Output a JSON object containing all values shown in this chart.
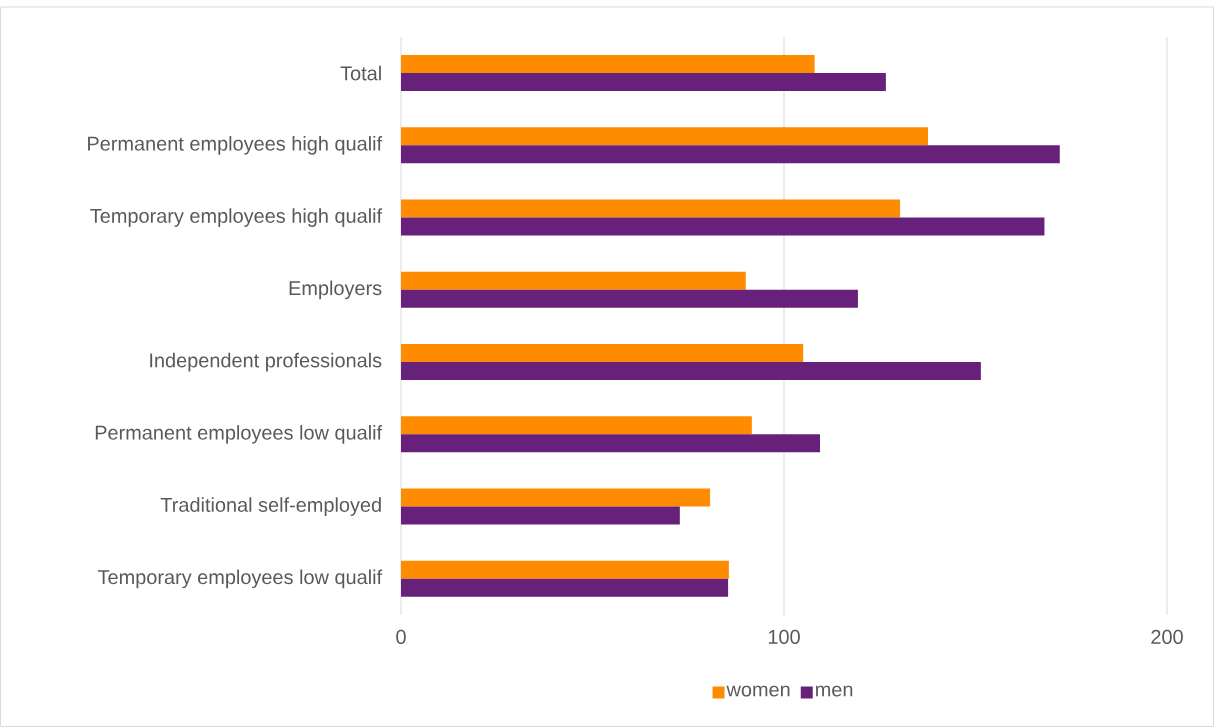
{
  "chart_data": {
    "type": "bar",
    "orientation": "horizontal",
    "categories": [
      "Total",
      "Permanent employees high qualif",
      "Temporary employees high qualif",
      "Employers",
      "Independent professionals",
      "Permanent employees low qualif",
      "Traditional self-employed",
      "Temporary employees low qualif"
    ],
    "series": [
      {
        "name": "women",
        "color": "#ff8c00",
        "values": [
          108,
          137.6,
          130.3,
          90,
          105,
          91.6,
          80.7,
          85.6
        ]
      },
      {
        "name": "men",
        "color": "#68217a",
        "values": [
          126.6,
          172,
          168,
          119.3,
          151.4,
          109.4,
          72.8,
          85.4
        ]
      }
    ],
    "xlim": [
      0,
      200
    ],
    "xticks": [
      0,
      100,
      200
    ],
    "grid": "x",
    "legend": "bottom"
  }
}
